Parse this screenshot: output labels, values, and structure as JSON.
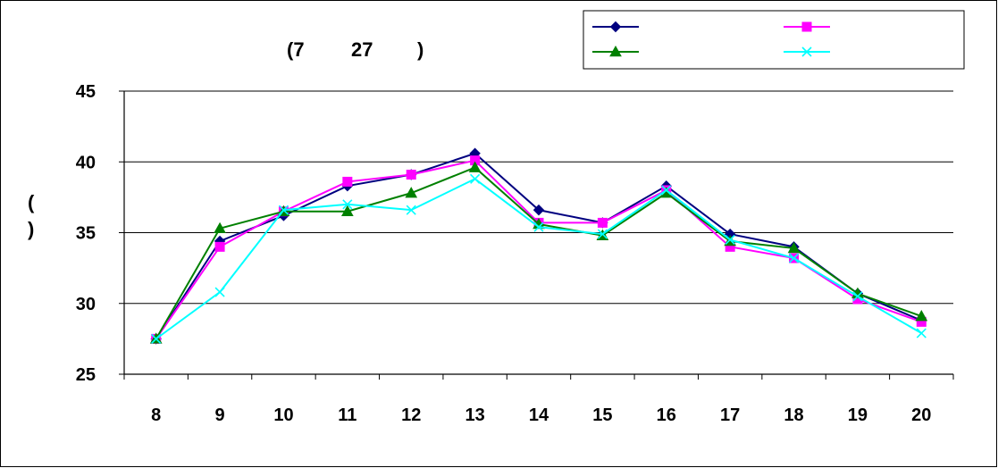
{
  "chart_data": {
    "type": "line",
    "title": "(7 27 )",
    "title_parts": [
      "(7",
      "27",
      ")"
    ],
    "ylabel": "( )",
    "ylabel_parts": [
      "(",
      ")"
    ],
    "xlabel": "",
    "x": [
      8,
      9,
      10,
      11,
      12,
      13,
      14,
      15,
      16,
      17,
      18,
      19,
      20
    ],
    "ylim": [
      25,
      45
    ],
    "yticks": [
      25,
      30,
      35,
      40,
      45
    ],
    "grid": "horizontal",
    "legend_position": "top-right",
    "series": [
      {
        "marker": "diamond",
        "color": "#000080",
        "values": [
          27.5,
          34.4,
          36.2,
          38.3,
          39.1,
          40.6,
          36.6,
          35.7,
          38.3,
          34.9,
          34.0,
          30.7,
          28.8
        ]
      },
      {
        "marker": "square",
        "color": "#ff00ff",
        "values": [
          27.5,
          34.0,
          36.5,
          38.6,
          39.1,
          40.1,
          35.7,
          35.7,
          38.0,
          34.0,
          33.2,
          30.3,
          28.7
        ]
      },
      {
        "marker": "triangle",
        "color": "#008000",
        "values": [
          27.5,
          35.3,
          36.5,
          36.5,
          37.8,
          39.6,
          35.6,
          34.8,
          37.8,
          34.4,
          33.9,
          30.7,
          29.1
        ]
      },
      {
        "marker": "x",
        "color": "#00ffff",
        "values": [
          27.5,
          30.8,
          36.6,
          37.0,
          36.6,
          38.8,
          35.4,
          34.9,
          38.0,
          34.5,
          33.2,
          30.5,
          27.9
        ]
      }
    ]
  }
}
